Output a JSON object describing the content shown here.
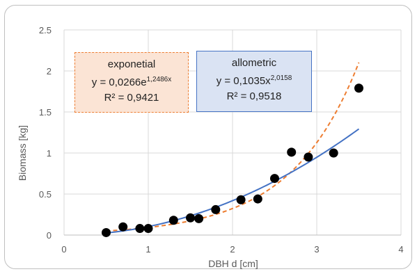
{
  "chart_data": {
    "type": "scatter",
    "xlabel": "DBH d [cm]",
    "ylabel": "Biomass [kg]",
    "xlim": [
      0,
      4
    ],
    "ylim": [
      0,
      2.5
    ],
    "xticks": [
      "0",
      "1",
      "2",
      "3",
      "4"
    ],
    "yticks": [
      "0",
      "0.5",
      "1",
      "1.5",
      "2",
      "2.5"
    ],
    "grid": "horizontal and vertical",
    "points": [
      {
        "x": 0.5,
        "y": 0.03
      },
      {
        "x": 0.7,
        "y": 0.1
      },
      {
        "x": 0.9,
        "y": 0.08
      },
      {
        "x": 1.0,
        "y": 0.08
      },
      {
        "x": 1.3,
        "y": 0.18
      },
      {
        "x": 1.5,
        "y": 0.21
      },
      {
        "x": 1.6,
        "y": 0.2
      },
      {
        "x": 1.8,
        "y": 0.31
      },
      {
        "x": 2.1,
        "y": 0.43
      },
      {
        "x": 2.3,
        "y": 0.44
      },
      {
        "x": 2.5,
        "y": 0.69
      },
      {
        "x": 2.7,
        "y": 1.01
      },
      {
        "x": 2.9,
        "y": 0.95
      },
      {
        "x": 3.2,
        "y": 1.0
      },
      {
        "x": 3.5,
        "y": 1.79
      }
    ],
    "trendlines": [
      {
        "kind": "exponential",
        "a": 0.0266,
        "b": 1.2486,
        "x_range": [
          0.5,
          3.5
        ],
        "color": "#ed7d31",
        "dash": true
      },
      {
        "kind": "power",
        "a": 0.1035,
        "b": 2.0158,
        "x_range": [
          0.5,
          3.5
        ],
        "color": "#4472c4",
        "dash": false
      }
    ],
    "point_color": "#000000",
    "annotations": {
      "exponential": {
        "title": "exponetial",
        "equation_base": "y = 0,0266e",
        "equation_exp": "1,2486x",
        "r2": "R² = 0,9421"
      },
      "allometric": {
        "title": "allometric",
        "equation_base": "y = 0,1035x",
        "equation_exp": "2,0158",
        "r2": "R² = 0,9518"
      }
    }
  }
}
